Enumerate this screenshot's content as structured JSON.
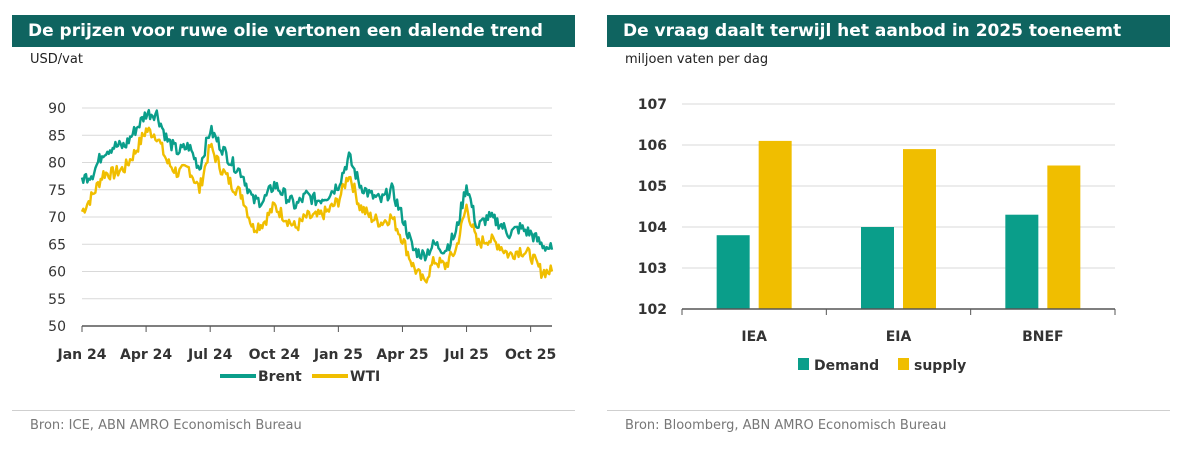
{
  "left": {
    "title": "De prijzen voor ruwe olie vertonen een dalende trend",
    "unit": "USD/vat",
    "source": "Bron: ICE, ABN AMRO Economisch Bureau"
  },
  "right": {
    "title": "De vraag daalt terwijl het aanbod in 2025 toeneemt",
    "unit": "miljoen vaten per dag",
    "source": "Bron: Bloomberg, ABN AMRO Economisch Bureau"
  },
  "colors": {
    "teal": "#0a9e8a",
    "gold": "#f0be00",
    "header": "#0f6460",
    "grid": "#d9d9d9"
  },
  "chart_data": [
    {
      "type": "line",
      "title": "De prijzen voor ruwe olie vertonen een dalende trend",
      "ylabel": "USD/vat",
      "ylim": [
        50,
        90
      ],
      "yticks": [
        50,
        55,
        60,
        65,
        70,
        75,
        80,
        85,
        90
      ],
      "xlim_month_index": [
        0,
        22
      ],
      "xticks": [
        {
          "label": "Jan 24",
          "m": 0
        },
        {
          "label": "Apr 24",
          "m": 3
        },
        {
          "label": "Jul 24",
          "m": 6
        },
        {
          "label": "Oct 24",
          "m": 9
        },
        {
          "label": "Jan 25",
          "m": 12
        },
        {
          "label": "Apr 25",
          "m": 15
        },
        {
          "label": "Jul 25",
          "m": 18
        },
        {
          "label": "Oct 25",
          "m": 21
        }
      ],
      "x_month_index": [
        0,
        0.5,
        1,
        1.5,
        2,
        2.5,
        3,
        3.5,
        4,
        4.5,
        5,
        5.5,
        6,
        6.5,
        7,
        7.5,
        8,
        8.5,
        9,
        9.5,
        10,
        10.5,
        11,
        11.5,
        12,
        12.5,
        13,
        13.5,
        14,
        14.5,
        15,
        15.5,
        16,
        16.5,
        17,
        17.5,
        18,
        18.5,
        19,
        19.5,
        20,
        20.5,
        21,
        21.5,
        22
      ],
      "series": [
        {
          "name": "Brent",
          "color": "#0a9e8a",
          "values": [
            77,
            78,
            82,
            83,
            83,
            86,
            89,
            89,
            84,
            82,
            83,
            79,
            86,
            83,
            80,
            78,
            73,
            73,
            76,
            74,
            72,
            74,
            73,
            74,
            76,
            81,
            76,
            74,
            73,
            75,
            70,
            64,
            63,
            65,
            64,
            67,
            76,
            68,
            70,
            69,
            67,
            68,
            67,
            65,
            64
          ]
        },
        {
          "name": "WTI",
          "color": "#f0be00",
          "values": [
            71,
            74,
            78,
            78,
            79,
            82,
            86,
            85,
            80,
            78,
            79,
            75,
            83,
            79,
            76,
            74,
            68,
            69,
            72,
            70,
            68,
            70,
            70,
            71,
            73,
            78,
            72,
            70,
            69,
            70,
            66,
            61,
            58,
            62,
            61,
            64,
            72,
            65,
            66,
            65,
            63,
            64,
            63,
            60,
            60
          ]
        }
      ],
      "legend": "bottom-center"
    },
    {
      "type": "bar",
      "title": "De vraag daalt terwijl het aanbod in 2025 toeneemt",
      "ylabel": "miljoen vaten per dag",
      "ylim": [
        102,
        107
      ],
      "yticks": [
        102,
        103,
        104,
        105,
        106,
        107
      ],
      "categories": [
        "IEA",
        "EIA",
        "BNEF"
      ],
      "series": [
        {
          "name": "Demand",
          "color": "#0a9e8a",
          "values": [
            103.8,
            104.0,
            104.3
          ]
        },
        {
          "name": "supply",
          "color": "#f0be00",
          "values": [
            106.1,
            105.9,
            105.5
          ]
        }
      ],
      "legend": "bottom-center"
    }
  ]
}
